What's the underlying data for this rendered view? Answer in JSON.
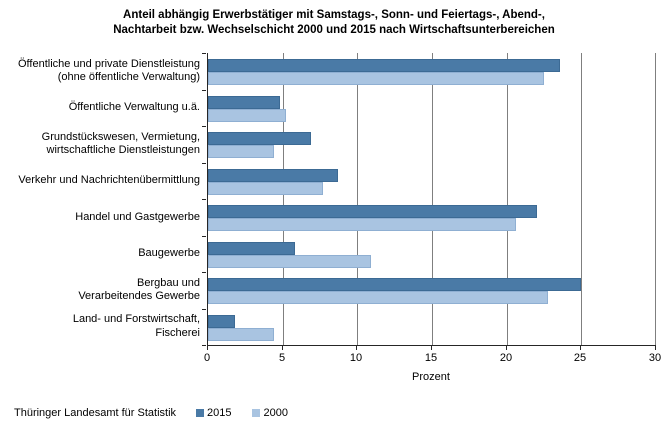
{
  "title": {
    "lines": [
      "Anteil abhängig Erwerbstätiger mit Samstags-, Sonn- und Feiertags-, Abend-,",
      "Nachtarbeit bzw. Wechselschicht 2000 und 2015 nach Wirtschaftsunterbereichen"
    ]
  },
  "footer": {
    "source": "Thüringer Landesamt für Statistik"
  },
  "legend": [
    {
      "label": "2015",
      "color": "#4a7aa6"
    },
    {
      "label": "2000",
      "color": "#a9c4e1"
    }
  ],
  "colors": {
    "series_2015_fill": "#4a7aa6",
    "series_2015_border": "#3c6a94",
    "series_2000_fill": "#a9c4e1",
    "series_2000_border": "#8fafd2",
    "gridline": "#7f7f7f",
    "axis": "#262626"
  },
  "chart_data": {
    "type": "bar",
    "orientation": "horizontal",
    "title": "Anteil abhängig Erwerbstätiger mit Samstags-, Sonn- und Feiertags-, Abend-, Nachtarbeit bzw. Wechselschicht 2000 und 2015 nach Wirtschaftsunterbereichen",
    "xlabel": "Prozent",
    "xlim": [
      0,
      30
    ],
    "xticks": [
      0,
      5,
      10,
      15,
      20,
      25,
      30
    ],
    "grid": true,
    "legend_position": "bottom",
    "categories": [
      "Öffentliche und private Dienstleistung\n(ohne öffentliche Verwaltung)",
      "Öffentliche Verwaltung u.ä.",
      "Grundstückswesen, Vermietung,\nwirtschaftliche Dienstleistungen",
      "Verkehr und Nachrichtenübermittlung",
      "Handel und Gastgewerbe",
      "Baugewerbe",
      "Bergbau und\nVerarbeitendes Gewerbe",
      "Land- und Forstwirtschaft,\nFischerei"
    ],
    "series": [
      {
        "name": "2015",
        "color": "#4a7aa6",
        "border": "#3c6a94",
        "values": [
          23.6,
          4.8,
          6.9,
          8.7,
          22.0,
          5.8,
          25.0,
          1.8
        ]
      },
      {
        "name": "2000",
        "color": "#a9c4e1",
        "border": "#8fafd2",
        "values": [
          22.5,
          5.2,
          4.4,
          7.7,
          20.6,
          10.9,
          22.8,
          4.4
        ]
      }
    ]
  }
}
